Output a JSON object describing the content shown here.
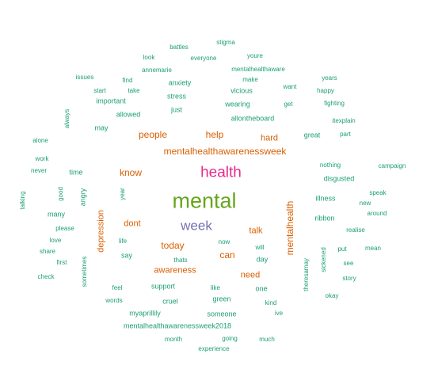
{
  "colors": {
    "tier1": "#66A61E",
    "tier2": "#E7298A",
    "tier3": "#7570B3",
    "tier4": "#D95F02",
    "tier5": "#1B9E77"
  },
  "words": [
    {
      "text": "mental",
      "color": "tier1"
    },
    {
      "text": "health",
      "color": "tier2"
    },
    {
      "text": "week",
      "color": "tier3"
    },
    {
      "text": "mentalhealthawarenessweek",
      "color": "tier4"
    },
    {
      "text": "mentalhealth",
      "color": "tier4"
    },
    {
      "text": "people",
      "color": "tier4"
    },
    {
      "text": "help",
      "color": "tier4"
    },
    {
      "text": "know",
      "color": "tier4"
    },
    {
      "text": "today",
      "color": "tier4"
    },
    {
      "text": "can",
      "color": "tier4"
    },
    {
      "text": "talk",
      "color": "tier4"
    },
    {
      "text": "hard",
      "color": "tier4"
    },
    {
      "text": "dont",
      "color": "tier4"
    },
    {
      "text": "depression",
      "color": "tier4"
    },
    {
      "text": "awareness",
      "color": "tier4"
    },
    {
      "text": "need",
      "color": "tier4"
    },
    {
      "text": "stigma",
      "color": "tier5"
    },
    {
      "text": "battles",
      "color": "tier5"
    },
    {
      "text": "youre",
      "color": "tier5"
    },
    {
      "text": "look",
      "color": "tier5"
    },
    {
      "text": "everyone",
      "color": "tier5"
    },
    {
      "text": "annemarie",
      "color": "tier5"
    },
    {
      "text": "mentalhealthaware",
      "color": "tier5"
    },
    {
      "text": "issues",
      "color": "tier5"
    },
    {
      "text": "find",
      "color": "tier5"
    },
    {
      "text": "anxiety",
      "color": "tier5"
    },
    {
      "text": "make",
      "color": "tier5"
    },
    {
      "text": "years",
      "color": "tier5"
    },
    {
      "text": "start",
      "color": "tier5"
    },
    {
      "text": "take",
      "color": "tier5"
    },
    {
      "text": "vicious",
      "color": "tier5"
    },
    {
      "text": "want",
      "color": "tier5"
    },
    {
      "text": "happy",
      "color": "tier5"
    },
    {
      "text": "stress",
      "color": "tier5"
    },
    {
      "text": "important",
      "color": "tier5"
    },
    {
      "text": "wearing",
      "color": "tier5"
    },
    {
      "text": "get",
      "color": "tier5"
    },
    {
      "text": "fighting",
      "color": "tier5"
    },
    {
      "text": "just",
      "color": "tier5"
    },
    {
      "text": "always",
      "color": "tier5"
    },
    {
      "text": "allowed",
      "color": "tier5"
    },
    {
      "text": "allontheboard",
      "color": "tier5"
    },
    {
      "text": "itexplain",
      "color": "tier5"
    },
    {
      "text": "may",
      "color": "tier5"
    },
    {
      "text": "great",
      "color": "tier5"
    },
    {
      "text": "part",
      "color": "tier5"
    },
    {
      "text": "alone",
      "color": "tier5"
    },
    {
      "text": "work",
      "color": "tier5"
    },
    {
      "text": "nothing",
      "color": "tier5"
    },
    {
      "text": "campaign",
      "color": "tier5"
    },
    {
      "text": "never",
      "color": "tier5"
    },
    {
      "text": "time",
      "color": "tier5"
    },
    {
      "text": "disgusted",
      "color": "tier5"
    },
    {
      "text": "good",
      "color": "tier5"
    },
    {
      "text": "angry",
      "color": "tier5"
    },
    {
      "text": "year",
      "color": "tier5"
    },
    {
      "text": "speak",
      "color": "tier5"
    },
    {
      "text": "talking",
      "color": "tier5"
    },
    {
      "text": "illness",
      "color": "tier5"
    },
    {
      "text": "new",
      "color": "tier5"
    },
    {
      "text": "many",
      "color": "tier5"
    },
    {
      "text": "around",
      "color": "tier5"
    },
    {
      "text": "ribbon",
      "color": "tier5"
    },
    {
      "text": "please",
      "color": "tier5"
    },
    {
      "text": "realise",
      "color": "tier5"
    },
    {
      "text": "love",
      "color": "tier5"
    },
    {
      "text": "life",
      "color": "tier5"
    },
    {
      "text": "now",
      "color": "tier5"
    },
    {
      "text": "will",
      "color": "tier5"
    },
    {
      "text": "put",
      "color": "tier5"
    },
    {
      "text": "mean",
      "color": "tier5"
    },
    {
      "text": "share",
      "color": "tier5"
    },
    {
      "text": "say",
      "color": "tier5"
    },
    {
      "text": "thats",
      "color": "tier5"
    },
    {
      "text": "day",
      "color": "tier5"
    },
    {
      "text": "first",
      "color": "tier5"
    },
    {
      "text": "sometimes",
      "color": "tier5"
    },
    {
      "text": "theresamay",
      "color": "tier5"
    },
    {
      "text": "sickened",
      "color": "tier5"
    },
    {
      "text": "see",
      "color": "tier5"
    },
    {
      "text": "check",
      "color": "tier5"
    },
    {
      "text": "story",
      "color": "tier5"
    },
    {
      "text": "feel",
      "color": "tier5"
    },
    {
      "text": "support",
      "color": "tier5"
    },
    {
      "text": "like",
      "color": "tier5"
    },
    {
      "text": "one",
      "color": "tier5"
    },
    {
      "text": "okay",
      "color": "tier5"
    },
    {
      "text": "words",
      "color": "tier5"
    },
    {
      "text": "cruel",
      "color": "tier5"
    },
    {
      "text": "green",
      "color": "tier5"
    },
    {
      "text": "kind",
      "color": "tier5"
    },
    {
      "text": "myaprillily",
      "color": "tier5"
    },
    {
      "text": "someone",
      "color": "tier5"
    },
    {
      "text": "ive",
      "color": "tier5"
    },
    {
      "text": "mentalhealthawarenessweek2018",
      "color": "tier5"
    },
    {
      "text": "month",
      "color": "tier5"
    },
    {
      "text": "going",
      "color": "tier5"
    },
    {
      "text": "much",
      "color": "tier5"
    },
    {
      "text": "experience",
      "color": "tier5"
    }
  ]
}
